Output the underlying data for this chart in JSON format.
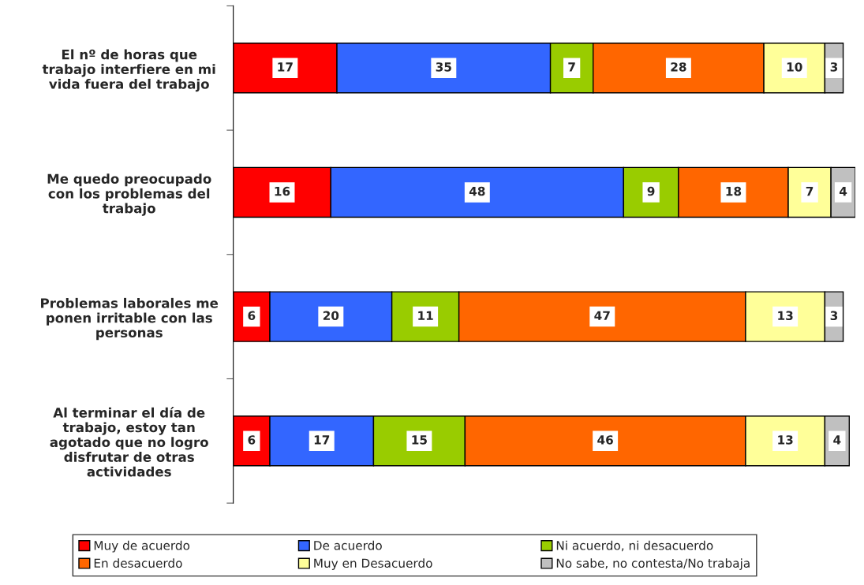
{
  "chart_data": {
    "type": "bar",
    "orientation": "horizontal",
    "stacked": true,
    "data_labels": true,
    "legend": "bottom",
    "grid": false,
    "categories": [
      "El nº de horas que\ntrabajo interfiere en mi\nvida fuera del trabajo",
      "Me quedo preocupado\ncon los problemas del\ntrabajo",
      "Problemas laborales me\nponen irritable con las\npersonas",
      "Al terminar el día de\ntrabajo, estoy tan\nagotado que no logro\ndisfrutar de otras\nactividades"
    ],
    "series": [
      {
        "name": "Muy de acuerdo",
        "color": "#ff0000",
        "values": [
          17,
          16,
          6,
          6
        ]
      },
      {
        "name": "De acuerdo",
        "color": "#3366ff",
        "values": [
          35,
          48,
          20,
          17
        ]
      },
      {
        "name": "Ni acuerdo, ni desacuerdo",
        "color": "#99cc00",
        "values": [
          7,
          9,
          11,
          15
        ]
      },
      {
        "name": "En desacuerdo",
        "color": "#ff6600",
        "values": [
          28,
          18,
          47,
          46
        ]
      },
      {
        "name": "Muy en Desacuerdo",
        "color": "#ffff99",
        "values": [
          10,
          7,
          13,
          13
        ]
      },
      {
        "name": "No sabe, no contesta/No trabaja",
        "color": "#c0c0c0",
        "values": [
          3,
          4,
          3,
          4
        ]
      }
    ]
  }
}
